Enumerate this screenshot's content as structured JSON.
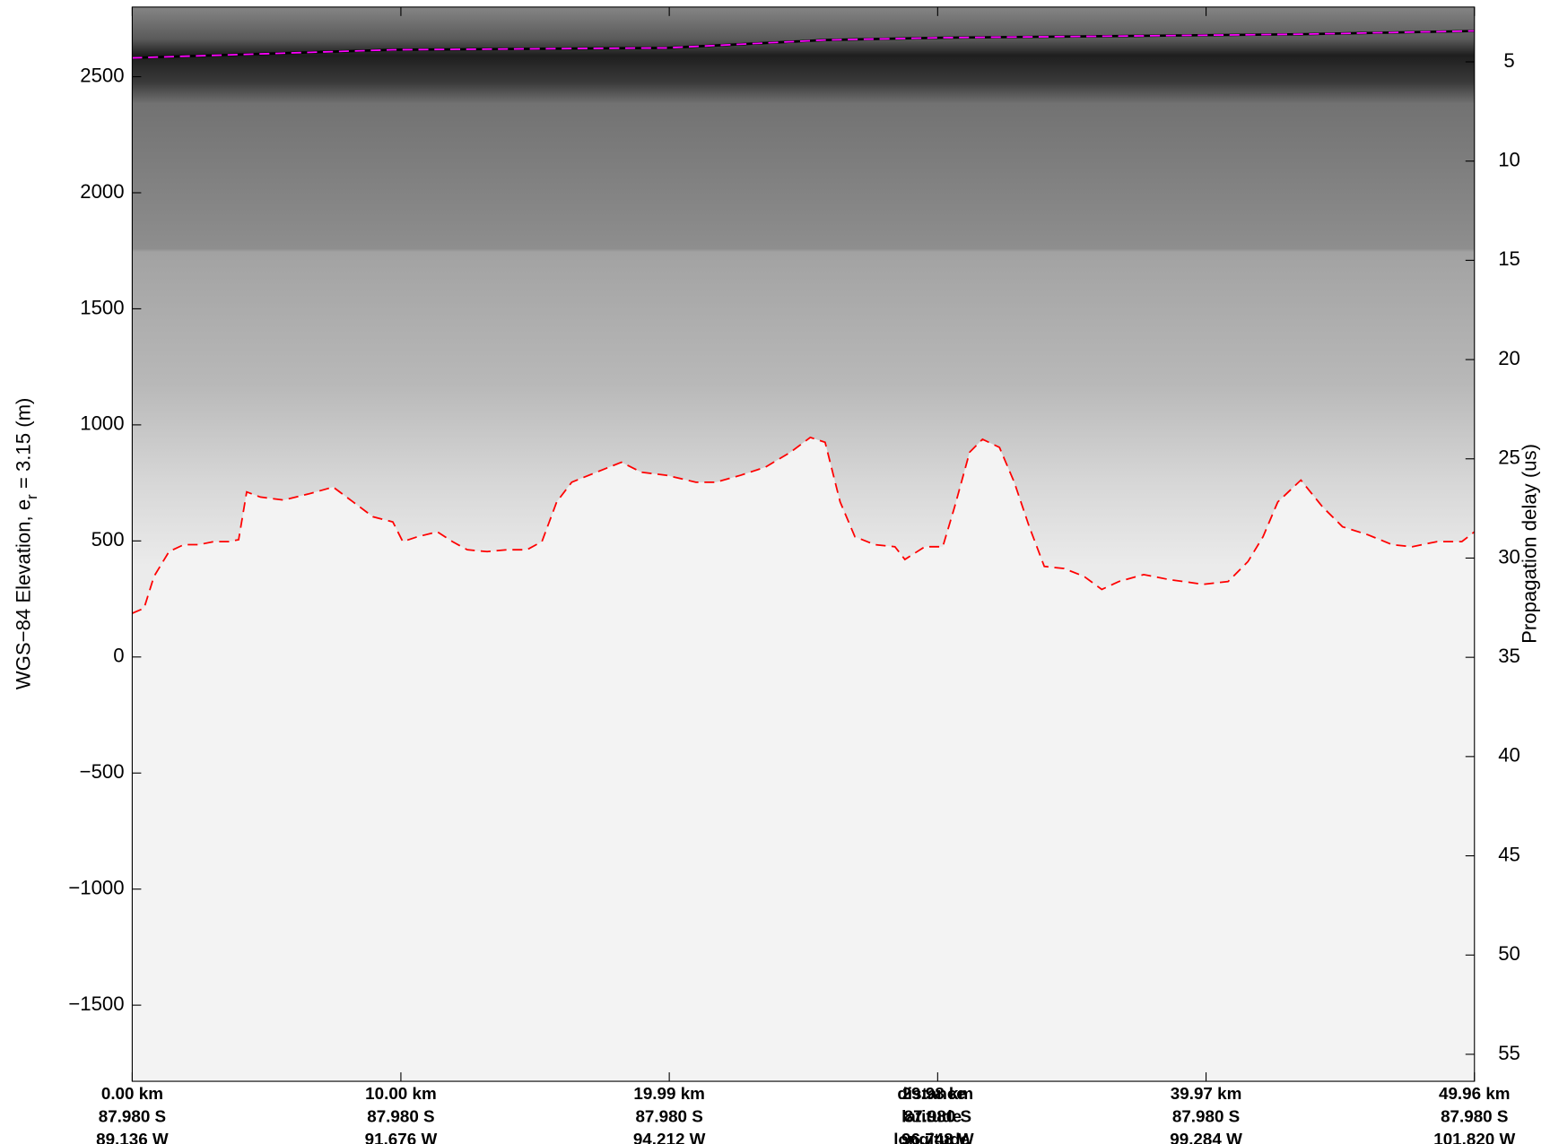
{
  "chart_data": {
    "type": "line",
    "ylabel_parts": [
      "WGS−84 Elevation, e",
      "r",
      " = 3.15 (m)"
    ],
    "y2label": "Propagation delay (us)",
    "x_row_labels": [
      "distance",
      "latitude",
      "longitude"
    ],
    "x": [
      0,
      0.44,
      0.81,
      1.37,
      1.92,
      2.48,
      3.03,
      3.59,
      3.96,
      4.26,
      4.77,
      5.63,
      6.55,
      7.48,
      8.22,
      8.96,
      9.7,
      10.07,
      10.62,
      11.36,
      11.92,
      12.47,
      13.21,
      13.95,
      14.69,
      15.25,
      15.8,
      16.36,
      17.28,
      18.21,
      18.95,
      19.88,
      20.98,
      21.72,
      22.65,
      23.57,
      24.5,
      25.24,
      25.79,
      26.35,
      26.9,
      27.64,
      28.39,
      28.76,
      29.5,
      30.17,
      30.61,
      31.17,
      31.65,
      32.28,
      32.83,
      33.39,
      33.95,
      34.69,
      35.43,
      36.09,
      36.72,
      37.65,
      38.57,
      39.87,
      40.79,
      41.53,
      42.09,
      42.64,
      43.5,
      44.31,
      45.05,
      45.98,
      46.9,
      47.64,
      48.57,
      49.49,
      49.96
    ],
    "series": [
      {
        "name": "Bed",
        "color": "#ff0000",
        "values": [
          188,
          210,
          347,
          454,
          484,
          484,
          497,
          497,
          505,
          711,
          689,
          676,
          702,
          732,
          668,
          604,
          582,
          497,
          518,
          539,
          497,
          462,
          454,
          462,
          462,
          497,
          668,
          753,
          796,
          839,
          796,
          783,
          753,
          753,
          783,
          818,
          882,
          946,
          925,
          668,
          518,
          484,
          475,
          420,
          475,
          475,
          646,
          882,
          938,
          903,
          753,
          561,
          390,
          381,
          347,
          291,
          325,
          355,
          334,
          313,
          325,
          411,
          518,
          668,
          762,
          646,
          561,
          527,
          484,
          475,
          497,
          497,
          539
        ]
      },
      {
        "name": "Surface",
        "color": "#ff00ff",
        "values": [
          2581,
          null,
          null,
          null,
          null,
          null,
          null,
          null,
          null,
          null,
          null,
          null,
          null,
          null,
          null,
          null,
          2616,
          null,
          null,
          null,
          null,
          null,
          null,
          null,
          null,
          null,
          null,
          null,
          null,
          null,
          null,
          2624,
          null,
          null,
          null,
          null,
          null,
          null,
          2658,
          null,
          null,
          null,
          null,
          null,
          null,
          2668,
          null,
          null,
          null,
          null,
          null,
          null,
          null,
          null,
          null,
          null,
          null,
          2676,
          null,
          null,
          null,
          null,
          null,
          null,
          2683,
          null,
          null,
          null,
          null,
          null,
          null,
          null,
          2697
        ]
      }
    ],
    "xlim": [
      0,
      49.96
    ],
    "xticks": [
      {
        "value": 0,
        "label": "0.00 km"
      },
      {
        "value": 10.0,
        "label": "10.00 km"
      },
      {
        "value": 19.99,
        "label": "19.99 km"
      },
      {
        "value": 29.98,
        "label": "29.98 km"
      },
      {
        "value": 39.97,
        "label": "39.97 km"
      },
      {
        "value": 49.96,
        "label": "49.96 km"
      }
    ],
    "xtick_latitudes": [
      "87.980 S",
      "87.980 S",
      "87.980 S",
      "87.980 S",
      "87.980 S",
      "87.980 S"
    ],
    "xtick_longitudes": [
      "89.136 W",
      "91.676 W",
      "94.212 W",
      "96.748 W",
      "99.284 W",
      "101.820 W"
    ],
    "ylim": [
      -1828,
      2800
    ],
    "yticks": [
      {
        "value": -1500,
        "label": "−1500"
      },
      {
        "value": -1000,
        "label": "−1000"
      },
      {
        "value": -500,
        "label": "−500"
      },
      0,
      500,
      1000,
      1500,
      2000,
      2500
    ],
    "y2lim": [
      2.24,
      56.36
    ],
    "y2_inverted": true,
    "y2ticks": [
      5,
      10,
      15,
      20,
      25,
      30,
      35,
      40,
      45,
      50,
      55
    ]
  }
}
